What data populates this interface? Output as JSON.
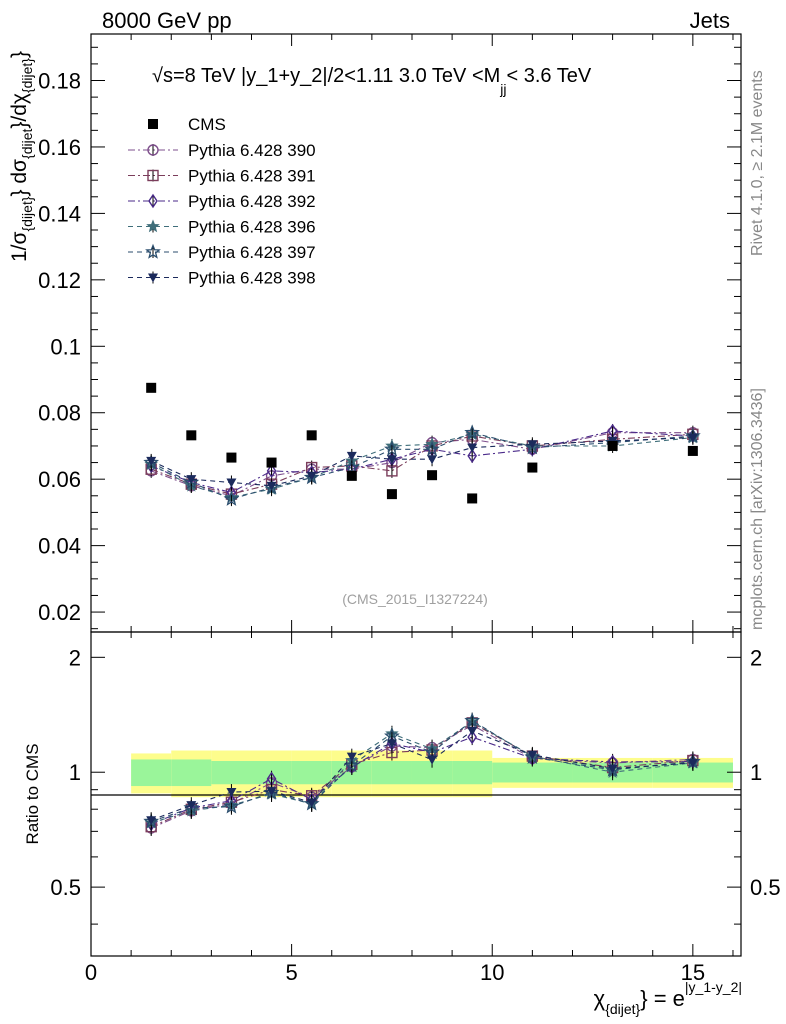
{
  "header": {
    "left": "8000 GeV pp",
    "right": "Jets"
  },
  "side_labels": {
    "top": "Rivet 4.1.0, ≥ 2.1M events",
    "bottom": "mcplots.cern.ch [arXiv:1306.3436]"
  },
  "watermark": "(CMS_2015_I1327224)",
  "chart_data": {
    "type": "scatter",
    "title": "√s=8 TeV |y_1+y_2|/2<1.11 3.0 TeV <M_jj< 3.6 TeV",
    "title_parts": {
      "prefix": "√",
      "main": "s=8 TeV |y_1+y_2|/2<1.11 3.0 TeV <M",
      "sub": "jj",
      "suffix": "< 3.6 TeV"
    },
    "ylabel": "1/σ_{dijet} dσ_{dijet}/dχ_{dijet}",
    "ylabel_parts": {
      "a": "1/σ",
      "a_sub": "{dijet}",
      "b": "} dσ",
      "b_sub": "{dijet",
      "c": "}/dχ",
      "c_sub": "{dijet}",
      "d": "}"
    },
    "xlabel": "χ_{dijet} = e^{|y_1-y_2|}",
    "xlabel_parts": {
      "chi": "χ",
      "chi_sub": "{dijet}",
      "eq": "} = e",
      "sup": "|y_1-y_2|"
    },
    "ratio_ylabel": "Ratio to CMS",
    "xlim": [
      0,
      16.2
    ],
    "ylim": [
      0.014,
      0.194
    ],
    "ratio_ylim": [
      0.33,
      2.33
    ],
    "x_ticks": [
      0,
      5,
      10,
      15
    ],
    "x_tick_labels": [
      "0",
      "5",
      "10",
      "15"
    ],
    "y_ticks": [
      0.02,
      0.04,
      0.06,
      0.08,
      0.1,
      0.12,
      0.14,
      0.16,
      0.18
    ],
    "y_tick_labels": [
      "0.02",
      "0.04",
      "0.06",
      "0.08",
      "0.1",
      "0.12",
      "0.14",
      "0.16",
      "0.18"
    ],
    "ratio_ticks": [
      0.5,
      1,
      2
    ],
    "ratio_tick_labels": [
      "0.5",
      "1",
      "2"
    ],
    "x": [
      1.5,
      2.5,
      3.5,
      4.5,
      5.5,
      6.5,
      7.5,
      8.5,
      9.5,
      11,
      13,
      15
    ],
    "bin_edges": [
      1,
      2,
      3,
      4,
      5,
      6,
      7,
      8,
      9,
      10,
      12,
      14,
      16
    ],
    "data": {
      "name": "CMS",
      "values": [
        0.0875,
        0.0732,
        0.0665,
        0.065,
        0.0732,
        0.061,
        0.0555,
        0.0612,
        0.0542,
        0.0635,
        0.07,
        0.0685
      ]
    },
    "band_inner": [
      0.08,
      0.08,
      0.07,
      0.07,
      0.07,
      0.07,
      0.07,
      0.07,
      0.07,
      0.06,
      0.06,
      0.06
    ],
    "band_outer": [
      0.12,
      0.14,
      0.14,
      0.14,
      0.14,
      0.14,
      0.14,
      0.14,
      0.14,
      0.09,
      0.09,
      0.09
    ],
    "series": [
      {
        "name": "Pythia 6.428 390",
        "color": "#7e4f8c",
        "marker": "circle-open",
        "dash": "7,3,2,3",
        "values": [
          0.0625,
          0.058,
          0.055,
          0.061,
          0.063,
          0.063,
          0.065,
          0.071,
          0.072,
          0.069,
          0.074,
          0.074
        ]
      },
      {
        "name": "Pythia 6.428 391",
        "color": "#7b3d5b",
        "marker": "square-open",
        "dash": "7,3,2,3",
        "values": [
          0.063,
          0.0585,
          0.0555,
          0.0585,
          0.0635,
          0.064,
          0.0625,
          0.07,
          0.073,
          0.07,
          0.072,
          0.0735
        ]
      },
      {
        "name": "Pythia 6.428 392",
        "color": "#4a2a8a",
        "marker": "diamond-open",
        "dash": "7,3,2,3",
        "values": [
          0.064,
          0.059,
          0.056,
          0.0625,
          0.062,
          0.063,
          0.066,
          0.069,
          0.067,
          0.069,
          0.0745,
          0.073
        ]
      },
      {
        "name": "Pythia 6.428 396",
        "color": "#3f6e7a",
        "marker": "star-filled",
        "dash": "5,4",
        "values": [
          0.0645,
          0.058,
          0.0545,
          0.057,
          0.0605,
          0.0655,
          0.07,
          0.0705,
          0.0735,
          0.07,
          0.07,
          0.0725
        ]
      },
      {
        "name": "Pythia 6.428 397",
        "color": "#2b4e6e",
        "marker": "star-open",
        "dash": "5,4",
        "values": [
          0.065,
          0.059,
          0.054,
          0.0575,
          0.0605,
          0.0635,
          0.069,
          0.069,
          0.074,
          0.0695,
          0.071,
          0.073
        ]
      },
      {
        "name": "Pythia 6.428 398",
        "color": "#1b2a5c",
        "marker": "triangle-down-filled",
        "dash": "5,4",
        "values": [
          0.0655,
          0.06,
          0.059,
          0.058,
          0.061,
          0.067,
          0.066,
          0.066,
          0.0695,
          0.0705,
          0.0715,
          0.0725
        ]
      }
    ]
  }
}
